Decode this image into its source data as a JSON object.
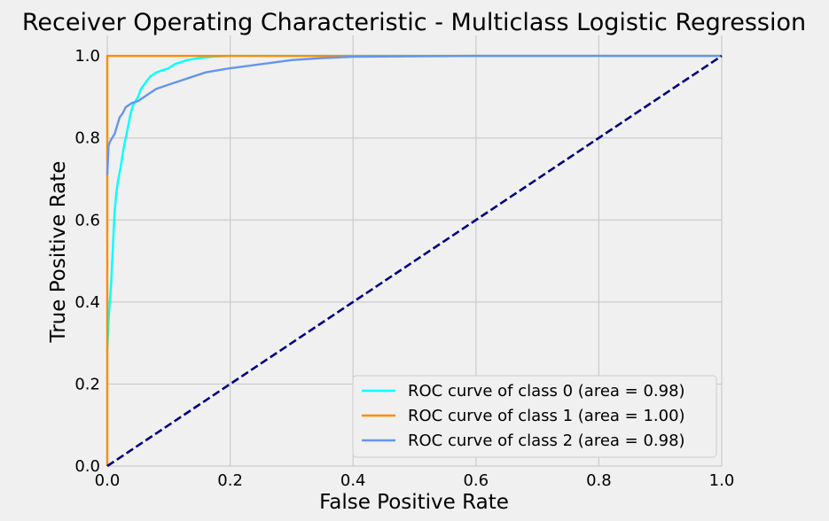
{
  "chart_data": {
    "type": "line",
    "title": "Receiver Operating Characteristic - Multiclass Logistic Regression",
    "xlabel": "False Positive Rate",
    "ylabel": "True Positive Rate",
    "xlim": [
      0.0,
      1.0
    ],
    "ylim": [
      0.0,
      1.05
    ],
    "xticks": [
      "0.0",
      "0.2",
      "0.4",
      "0.6",
      "0.8",
      "1.0"
    ],
    "yticks": [
      "0.0",
      "0.2",
      "0.4",
      "0.6",
      "0.8",
      "1.0"
    ],
    "grid": true,
    "legend_position": "lower-right",
    "background": "#f0f0f0",
    "grid_color": "#cbcbcb",
    "series": [
      {
        "name": "ROC curve of class 0 (area = 0.98)",
        "color": "#00ffff",
        "x": [
          0.0,
          0.002,
          0.004,
          0.006,
          0.008,
          0.01,
          0.012,
          0.015,
          0.018,
          0.022,
          0.026,
          0.03,
          0.034,
          0.038,
          0.042,
          0.046,
          0.05,
          0.055,
          0.06,
          0.065,
          0.07,
          0.08,
          0.09,
          0.1,
          0.11,
          0.12,
          0.13,
          0.15,
          0.17,
          0.2,
          0.3,
          0.4,
          1.0
        ],
        "y": [
          0.28,
          0.35,
          0.4,
          0.44,
          0.5,
          0.56,
          0.62,
          0.67,
          0.7,
          0.73,
          0.77,
          0.8,
          0.83,
          0.86,
          0.88,
          0.89,
          0.9,
          0.92,
          0.93,
          0.94,
          0.95,
          0.96,
          0.965,
          0.97,
          0.98,
          0.985,
          0.99,
          0.995,
          0.998,
          1.0,
          1.0,
          1.0,
          1.0
        ]
      },
      {
        "name": "ROC curve of class 1 (area = 1.00)",
        "color": "#ff8c00",
        "x": [
          0.0,
          0.0,
          1.0
        ],
        "y": [
          0.0,
          1.0,
          1.0
        ]
      },
      {
        "name": "ROC curve of class 2 (area = 0.98)",
        "color": "#6495ed",
        "x": [
          0.0,
          0.002,
          0.004,
          0.008,
          0.012,
          0.016,
          0.02,
          0.025,
          0.03,
          0.04,
          0.05,
          0.06,
          0.07,
          0.08,
          0.09,
          0.1,
          0.12,
          0.14,
          0.16,
          0.18,
          0.2,
          0.25,
          0.3,
          0.35,
          0.4,
          0.5,
          0.6,
          0.7,
          1.0
        ],
        "y": [
          0.71,
          0.78,
          0.79,
          0.8,
          0.81,
          0.83,
          0.85,
          0.86,
          0.875,
          0.885,
          0.89,
          0.9,
          0.91,
          0.92,
          0.925,
          0.93,
          0.94,
          0.95,
          0.96,
          0.965,
          0.97,
          0.98,
          0.99,
          0.995,
          0.998,
          0.999,
          1.0,
          1.0,
          1.0
        ]
      },
      {
        "name": "",
        "color": "#000080",
        "dashed": true,
        "x": [
          0.0,
          1.0
        ],
        "y": [
          0.0,
          1.0
        ]
      }
    ]
  }
}
